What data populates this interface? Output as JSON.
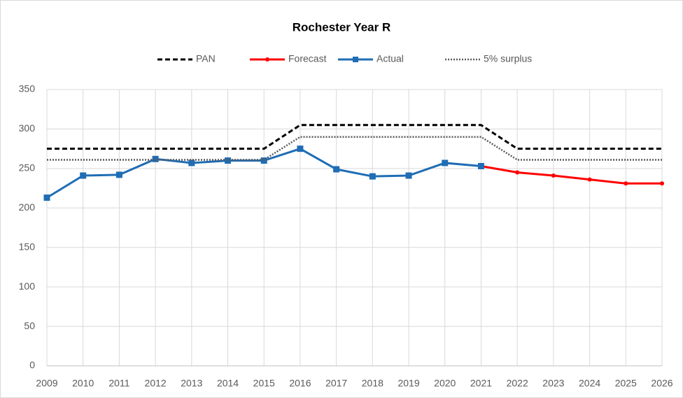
{
  "chart_data": {
    "type": "line",
    "title": "Rochester Year R",
    "categories": [
      "2009",
      "2010",
      "2011",
      "2012",
      "2013",
      "2014",
      "2015",
      "2016",
      "2017",
      "2018",
      "2019",
      "2020",
      "2021",
      "2022",
      "2023",
      "2024",
      "2025",
      "2026"
    ],
    "series": [
      {
        "name": "PAN",
        "color": "#000000",
        "dash": "dashed",
        "marker": "none",
        "values": [
          275,
          275,
          275,
          275,
          275,
          275,
          275,
          305,
          305,
          305,
          305,
          305,
          305,
          275,
          275,
          275,
          275,
          275
        ]
      },
      {
        "name": "Forecast",
        "color": "#ff0000",
        "dash": "solid",
        "marker": "circle",
        "values": [
          null,
          null,
          null,
          null,
          null,
          null,
          null,
          null,
          null,
          null,
          null,
          null,
          253,
          245,
          241,
          236,
          231,
          231
        ]
      },
      {
        "name": "Actual",
        "color": "#1f6db4",
        "dash": "solid",
        "marker": "square",
        "values": [
          213,
          241,
          242,
          262,
          257,
          260,
          260,
          275,
          249,
          240,
          241,
          257,
          253,
          null,
          null,
          null,
          null,
          null
        ]
      },
      {
        "name": "5% surplus",
        "color": "#595959",
        "dash": "dotted",
        "marker": "none",
        "values": [
          261,
          261,
          261,
          261,
          261,
          261,
          261,
          290,
          290,
          290,
          290,
          290,
          290,
          261,
          261,
          261,
          261,
          261
        ]
      }
    ],
    "ylim": [
      0,
      350
    ],
    "yticks": [
      0,
      50,
      100,
      150,
      200,
      250,
      300,
      350
    ],
    "grid": true,
    "legend": "top"
  }
}
